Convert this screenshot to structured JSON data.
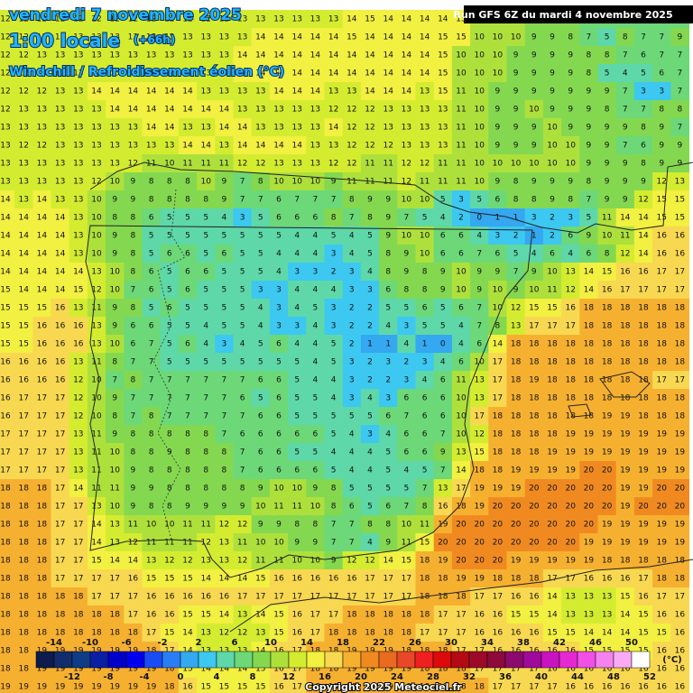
{
  "header": {
    "date": "vendredi 7 novembre 2025",
    "time": "1:00 locale",
    "lead": "(+66h)",
    "variable": "Windchill / Refroidissement éolien (°C)",
    "run": "Run GFS 6Z du mardi 4 novembre 2025"
  },
  "legend": {
    "range": [
      -16,
      52
    ],
    "top_labels": [
      -14,
      -10,
      -6,
      -2,
      2,
      6,
      10,
      14,
      18,
      22,
      26,
      30,
      34,
      38,
      42,
      46,
      50
    ],
    "bottom_labels": [
      -12,
      -8,
      -4,
      0,
      4,
      8,
      12,
      16,
      20,
      24,
      28,
      32,
      36,
      40,
      44,
      48,
      52
    ],
    "unit": "(°C)",
    "colors": [
      "#0d1b4d",
      "#132c6b",
      "#0f3c86",
      "#0a1fa3",
      "#0000c8",
      "#0000ee",
      "#1a4cf5",
      "#2a7df5",
      "#34a8f0",
      "#3cc8f0",
      "#5ed8a8",
      "#6cd878",
      "#84d850",
      "#aee03c",
      "#d4ec30",
      "#f2f040",
      "#f8d850",
      "#f6b030",
      "#f08a20",
      "#ea6a20",
      "#e84828",
      "#f02020",
      "#dc0a0a",
      "#b40a14",
      "#9c0a28",
      "#8c0a3c",
      "#8c0a6e",
      "#a00a9a",
      "#c814c0",
      "#e628d2",
      "#f050e6",
      "#f582ee",
      "#faaaf5",
      "#ffffff"
    ]
  },
  "grid_values": [
    [
      12,
      12,
      12,
      12,
      12,
      12,
      12,
      12,
      12,
      12,
      12,
      12,
      12,
      13,
      13,
      13,
      13,
      13,
      13,
      14,
      15,
      14,
      14,
      14,
      14,
      15,
      10,
      10,
      10,
      9,
      8,
      8,
      7,
      7,
      6,
      6,
      7,
      7
    ],
    [
      12,
      12,
      13,
      13,
      13,
      13,
      13,
      13,
      13,
      13,
      13,
      13,
      13,
      13,
      14,
      14,
      14,
      14,
      14,
      15,
      14,
      14,
      14,
      14,
      15,
      15,
      10,
      10,
      10,
      9,
      9,
      8,
      7,
      5,
      8,
      7,
      7,
      9
    ],
    [
      12,
      12,
      13,
      13,
      13,
      13,
      13,
      13,
      13,
      13,
      13,
      13,
      13,
      14,
      14,
      14,
      14,
      14,
      14,
      14,
      14,
      14,
      14,
      14,
      15,
      10,
      10,
      10,
      9,
      9,
      9,
      9,
      8,
      8,
      7,
      6,
      7,
      7
    ],
    [
      12,
      12,
      13,
      13,
      13,
      13,
      13,
      13,
      13,
      13,
      13,
      13,
      13,
      14,
      14,
      14,
      14,
      14,
      14,
      14,
      14,
      14,
      14,
      14,
      15,
      10,
      10,
      10,
      9,
      9,
      9,
      9,
      8,
      5,
      4,
      5,
      6,
      7
    ],
    [
      12,
      12,
      12,
      13,
      13,
      14,
      14,
      14,
      14,
      14,
      14,
      13,
      13,
      13,
      13,
      14,
      14,
      14,
      13,
      13,
      14,
      14,
      14,
      13,
      15,
      11,
      10,
      9,
      9,
      9,
      9,
      9,
      9,
      9,
      7,
      3,
      3,
      7
    ],
    [
      12,
      13,
      13,
      13,
      13,
      13,
      14,
      14,
      14,
      14,
      14,
      14,
      14,
      13,
      13,
      13,
      13,
      13,
      12,
      12,
      12,
      13,
      13,
      13,
      13,
      11,
      10,
      9,
      9,
      10,
      9,
      9,
      9,
      8,
      7,
      7,
      8,
      8
    ],
    [
      13,
      13,
      13,
      13,
      13,
      13,
      13,
      13,
      14,
      14,
      13,
      13,
      14,
      14,
      13,
      13,
      13,
      13,
      14,
      12,
      12,
      13,
      13,
      13,
      13,
      11,
      10,
      9,
      9,
      9,
      10,
      9,
      9,
      9,
      9,
      8,
      9,
      7
    ],
    [
      13,
      12,
      12,
      13,
      13,
      13,
      13,
      13,
      13,
      13,
      14,
      14,
      13,
      14,
      14,
      14,
      14,
      13,
      13,
      12,
      12,
      12,
      13,
      13,
      13,
      11,
      10,
      9,
      9,
      9,
      10,
      10,
      9,
      9,
      7,
      6,
      9,
      9
    ],
    [
      13,
      13,
      13,
      13,
      13,
      13,
      13,
      12,
      11,
      10,
      11,
      11,
      11,
      12,
      12,
      13,
      13,
      13,
      12,
      12,
      11,
      11,
      12,
      12,
      11,
      11,
      10,
      10,
      10,
      10,
      10,
      10,
      9,
      9,
      9,
      8,
      9,
      9
    ],
    [
      13,
      13,
      13,
      13,
      13,
      12,
      10,
      9,
      8,
      8,
      8,
      10,
      9,
      7,
      8,
      10,
      10,
      10,
      9,
      11,
      11,
      11,
      12,
      11,
      11,
      11,
      10,
      9,
      8,
      9,
      9,
      9,
      8,
      9,
      9,
      9,
      12,
      13
    ],
    [
      14,
      13,
      14,
      13,
      13,
      10,
      9,
      9,
      8,
      8,
      8,
      8,
      9,
      7,
      7,
      6,
      7,
      7,
      7,
      8,
      9,
      9,
      10,
      10,
      5,
      3,
      5,
      6,
      8,
      8,
      9,
      8,
      7,
      9,
      9,
      12,
      15,
      15
    ],
    [
      14,
      14,
      14,
      14,
      13,
      10,
      8,
      8,
      6,
      5,
      5,
      5,
      4,
      3,
      5,
      6,
      6,
      6,
      8,
      7,
      8,
      9,
      7,
      5,
      4,
      2,
      0,
      1,
      1,
      3,
      2,
      3,
      5,
      11,
      14,
      14,
      15,
      15
    ],
    [
      14,
      14,
      14,
      14,
      13,
      10,
      9,
      8,
      5,
      5,
      5,
      5,
      5,
      5,
      5,
      5,
      4,
      4,
      5,
      4,
      5,
      9,
      10,
      10,
      6,
      6,
      4,
      3,
      2,
      1,
      2,
      6,
      9,
      10,
      11,
      14,
      16,
      16
    ],
    [
      14,
      14,
      14,
      14,
      13,
      10,
      9,
      8,
      5,
      6,
      6,
      5,
      6,
      5,
      5,
      4,
      4,
      4,
      3,
      4,
      5,
      8,
      9,
      10,
      6,
      6,
      7,
      6,
      5,
      4,
      6,
      4,
      6,
      8,
      12,
      14,
      16,
      16
    ],
    [
      14,
      14,
      14,
      14,
      14,
      13,
      10,
      8,
      6,
      5,
      6,
      6,
      5,
      5,
      5,
      4,
      3,
      3,
      2,
      3,
      4,
      8,
      9,
      8,
      9,
      10,
      9,
      9,
      7,
      9,
      10,
      13,
      14,
      15,
      16,
      16,
      17,
      17
    ],
    [
      15,
      14,
      14,
      14,
      15,
      12,
      10,
      7,
      6,
      5,
      6,
      5,
      5,
      5,
      3,
      3,
      4,
      4,
      4,
      3,
      3,
      6,
      8,
      8,
      9,
      10,
      9,
      10,
      9,
      10,
      11,
      12,
      14,
      16,
      17,
      17,
      17,
      17
    ],
    [
      15,
      15,
      15,
      16,
      13,
      11,
      9,
      8,
      5,
      6,
      5,
      5,
      5,
      5,
      4,
      3,
      4,
      5,
      3,
      2,
      2,
      5,
      5,
      6,
      5,
      6,
      7,
      10,
      12,
      15,
      15,
      16,
      18,
      18,
      18,
      18,
      18,
      18
    ],
    [
      15,
      15,
      16,
      16,
      16,
      13,
      9,
      6,
      6,
      5,
      5,
      4,
      5,
      5,
      4,
      3,
      3,
      4,
      3,
      2,
      2,
      4,
      3,
      5,
      5,
      4,
      7,
      8,
      13,
      17,
      17,
      17,
      18,
      18,
      18,
      18,
      18,
      18
    ],
    [
      15,
      15,
      16,
      16,
      16,
      13,
      10,
      6,
      7,
      5,
      6,
      4,
      3,
      4,
      5,
      6,
      4,
      4,
      5,
      2,
      1,
      1,
      4,
      1,
      0,
      4,
      6,
      14,
      18,
      18,
      18,
      18,
      18,
      18,
      18,
      18,
      18,
      18
    ],
    [
      16,
      16,
      16,
      16,
      13,
      11,
      8,
      7,
      7,
      5,
      5,
      5,
      5,
      5,
      5,
      5,
      5,
      4,
      5,
      3,
      2,
      3,
      2,
      3,
      4,
      6,
      10,
      17,
      18,
      18,
      18,
      18,
      18,
      18,
      18,
      18,
      18,
      18
    ],
    [
      16,
      16,
      16,
      16,
      12,
      10,
      7,
      8,
      7,
      7,
      7,
      7,
      7,
      7,
      6,
      6,
      5,
      4,
      4,
      3,
      2,
      2,
      3,
      4,
      6,
      11,
      13,
      17,
      18,
      19,
      18,
      18,
      18,
      18,
      18,
      18,
      17,
      17
    ],
    [
      16,
      17,
      17,
      17,
      12,
      10,
      9,
      7,
      7,
      7,
      7,
      7,
      7,
      6,
      5,
      6,
      5,
      5,
      4,
      3,
      4,
      3,
      6,
      6,
      6,
      10,
      13,
      17,
      18,
      18,
      18,
      18,
      18,
      18,
      18,
      18,
      18,
      18
    ],
    [
      16,
      17,
      17,
      17,
      12,
      10,
      8,
      7,
      8,
      7,
      7,
      7,
      7,
      7,
      6,
      6,
      5,
      5,
      5,
      5,
      5,
      6,
      7,
      6,
      6,
      10,
      17,
      18,
      18,
      18,
      18,
      18,
      18,
      19,
      19,
      18,
      18,
      18
    ],
    [
      17,
      17,
      17,
      17,
      13,
      11,
      9,
      8,
      8,
      8,
      8,
      8,
      7,
      6,
      6,
      6,
      6,
      6,
      5,
      4,
      3,
      4,
      6,
      6,
      7,
      10,
      12,
      18,
      18,
      18,
      18,
      19,
      19,
      19,
      19,
      19,
      19,
      19
    ],
    [
      17,
      17,
      17,
      17,
      13,
      11,
      10,
      8,
      8,
      9,
      8,
      8,
      8,
      7,
      6,
      6,
      5,
      5,
      4,
      4,
      4,
      5,
      6,
      6,
      9,
      13,
      15,
      18,
      18,
      18,
      19,
      19,
      19,
      19,
      19,
      19,
      19,
      19
    ],
    [
      17,
      17,
      17,
      17,
      13,
      11,
      10,
      9,
      8,
      8,
      8,
      8,
      8,
      7,
      6,
      6,
      6,
      6,
      5,
      4,
      4,
      5,
      4,
      5,
      7,
      14,
      18,
      18,
      19,
      19,
      19,
      19,
      20,
      20,
      19,
      19,
      19,
      19
    ],
    [
      18,
      18,
      18,
      17,
      14,
      11,
      11,
      9,
      9,
      8,
      8,
      8,
      8,
      8,
      9,
      10,
      10,
      9,
      8,
      5,
      5,
      5,
      5,
      7,
      13,
      17,
      19,
      19,
      19,
      20,
      20,
      20,
      20,
      20,
      19,
      19,
      20,
      20
    ],
    [
      18,
      18,
      18,
      17,
      17,
      13,
      10,
      9,
      8,
      8,
      9,
      9,
      9,
      9,
      10,
      11,
      11,
      10,
      8,
      6,
      5,
      6,
      7,
      8,
      16,
      18,
      19,
      20,
      20,
      20,
      20,
      20,
      20,
      20,
      19,
      20,
      20,
      20
    ],
    [
      18,
      18,
      18,
      17,
      17,
      14,
      13,
      11,
      10,
      10,
      11,
      11,
      12,
      12,
      9,
      9,
      8,
      8,
      7,
      7,
      8,
      8,
      10,
      11,
      19,
      20,
      20,
      20,
      20,
      20,
      20,
      20,
      20,
      19,
      19,
      19,
      19,
      19
    ],
    [
      18,
      18,
      18,
      17,
      17,
      14,
      13,
      12,
      11,
      11,
      11,
      12,
      13,
      11,
      10,
      10,
      9,
      9,
      7,
      7,
      4,
      9,
      11,
      15,
      20,
      20,
      20,
      20,
      20,
      20,
      20,
      20,
      19,
      19,
      19,
      19,
      19,
      19
    ],
    [
      18,
      18,
      18,
      17,
      17,
      15,
      14,
      14,
      13,
      12,
      12,
      13,
      13,
      12,
      11,
      11,
      10,
      10,
      9,
      12,
      12,
      14,
      15,
      18,
      19,
      20,
      20,
      20,
      19,
      19,
      19,
      19,
      19,
      18,
      18,
      18,
      18,
      18
    ],
    [
      18,
      18,
      18,
      17,
      17,
      17,
      17,
      16,
      15,
      15,
      15,
      14,
      14,
      14,
      15,
      16,
      16,
      16,
      16,
      16,
      17,
      17,
      17,
      18,
      18,
      19,
      19,
      18,
      18,
      18,
      17,
      17,
      16,
      16,
      16,
      17,
      18,
      18
    ],
    [
      18,
      18,
      18,
      18,
      18,
      17,
      17,
      17,
      16,
      16,
      16,
      16,
      16,
      17,
      17,
      17,
      17,
      17,
      17,
      17,
      17,
      17,
      17,
      18,
      18,
      18,
      17,
      17,
      16,
      16,
      14,
      13,
      13,
      13,
      15,
      16,
      17,
      17
    ],
    [
      18,
      18,
      18,
      18,
      18,
      18,
      18,
      17,
      16,
      16,
      15,
      15,
      14,
      13,
      14,
      15,
      16,
      17,
      17,
      18,
      18,
      18,
      18,
      18,
      17,
      17,
      16,
      16,
      15,
      15,
      14,
      13,
      13,
      13,
      14,
      15,
      16,
      16
    ],
    [
      18,
      18,
      18,
      18,
      18,
      18,
      18,
      18,
      17,
      15,
      14,
      13,
      12,
      12,
      13,
      15,
      16,
      17,
      18,
      18,
      18,
      18,
      18,
      17,
      17,
      17,
      16,
      16,
      16,
      16,
      15,
      15,
      14,
      14,
      14,
      15,
      15,
      16
    ],
    [
      18,
      18,
      19,
      19,
      19,
      19,
      19,
      19,
      18,
      17,
      14,
      13,
      13,
      13,
      14,
      16,
      17,
      18,
      18,
      19,
      19,
      19,
      18,
      18,
      18,
      17,
      17,
      16,
      16,
      16,
      16,
      16,
      15,
      15,
      15,
      15,
      16,
      16
    ],
    [
      18,
      18,
      19,
      19,
      19,
      19,
      19,
      19,
      19,
      18,
      15,
      14,
      14,
      14,
      15,
      16,
      17,
      18,
      18,
      19,
      19,
      19,
      19,
      18,
      18,
      18,
      17,
      17,
      17,
      17,
      16,
      16,
      16,
      16,
      16,
      16,
      16,
      16
    ],
    [
      19,
      19,
      19,
      19,
      19,
      19,
      19,
      19,
      19,
      18,
      16,
      15,
      15,
      15,
      15,
      16,
      17,
      18,
      19,
      19,
      19,
      19,
      19,
      19,
      18,
      18,
      18,
      17,
      17,
      17,
      17,
      16,
      16,
      16,
      16,
      16,
      16,
      16
    ]
  ],
  "copyright": "Copyright 2025 Meteociel.fr"
}
